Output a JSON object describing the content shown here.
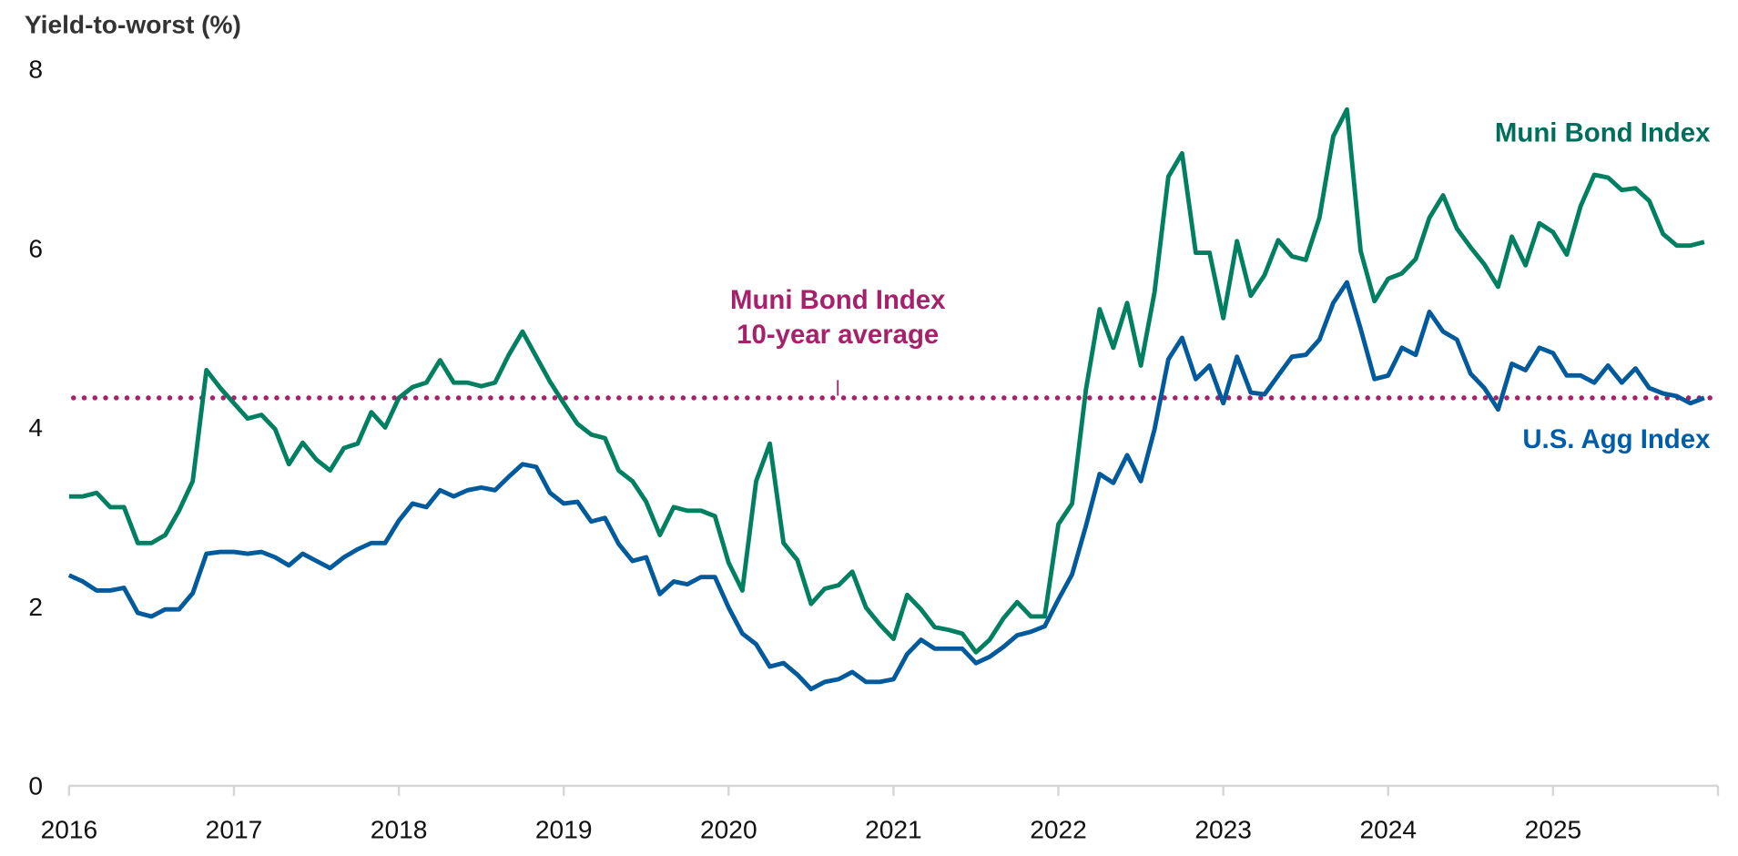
{
  "chart_data": {
    "type": "line",
    "ylabel": "Yield-to-worst (%)",
    "ylim": [
      0,
      8
    ],
    "yticks": [
      0,
      2,
      4,
      6,
      8
    ],
    "xticks": [
      "2016",
      "2017",
      "2018",
      "2019",
      "2020",
      "2021",
      "2022",
      "2023",
      "2024",
      "2025"
    ],
    "xrange": [
      "2016-01",
      "2025-12"
    ],
    "frequency": "monthly",
    "grid": false,
    "series": [
      {
        "name": "Muni Bond Index",
        "color": "#008060",
        "label_color": "#006e5a",
        "values": [
          3.23,
          3.23,
          3.27,
          3.11,
          3.11,
          2.71,
          2.71,
          2.8,
          3.07,
          3.4,
          4.64,
          4.44,
          4.27,
          4.1,
          4.14,
          3.98,
          3.59,
          3.83,
          3.64,
          3.52,
          3.77,
          3.82,
          4.17,
          4.0,
          4.33,
          4.45,
          4.5,
          4.75,
          4.5,
          4.5,
          4.46,
          4.5,
          4.81,
          5.07,
          4.79,
          4.51,
          4.27,
          4.04,
          3.92,
          3.88,
          3.52,
          3.4,
          3.17,
          2.8,
          3.11,
          3.07,
          3.07,
          3.01,
          2.49,
          2.18,
          3.4,
          3.82,
          2.71,
          2.52,
          2.03,
          2.2,
          2.24,
          2.39,
          1.99,
          1.8,
          1.64,
          2.13,
          1.97,
          1.77,
          1.74,
          1.7,
          1.49,
          1.63,
          1.87,
          2.05,
          1.89,
          1.89,
          2.92,
          3.15,
          4.42,
          5.32,
          4.89,
          5.39,
          4.69,
          5.51,
          6.8,
          7.06,
          5.95,
          5.95,
          5.22,
          6.08,
          5.47,
          5.7,
          6.09,
          5.91,
          5.87,
          6.34,
          7.25,
          7.55,
          5.97,
          5.41,
          5.66,
          5.72,
          5.88,
          6.34,
          6.59,
          6.22,
          6.01,
          5.82,
          5.57,
          6.13,
          5.81,
          6.28,
          6.18,
          5.93,
          6.47,
          6.82,
          6.79,
          6.65,
          6.67,
          6.53,
          6.16,
          6.03,
          6.03,
          6.07
        ]
      },
      {
        "name": "U.S. Agg Index",
        "color": "#005a9c",
        "label_color": "#005ea8",
        "values": [
          2.35,
          2.28,
          2.18,
          2.18,
          2.21,
          1.93,
          1.89,
          1.97,
          1.97,
          2.15,
          2.59,
          2.61,
          2.61,
          2.59,
          2.61,
          2.55,
          2.46,
          2.59,
          2.51,
          2.43,
          2.55,
          2.64,
          2.71,
          2.71,
          2.96,
          3.15,
          3.11,
          3.3,
          3.23,
          3.3,
          3.33,
          3.3,
          3.45,
          3.59,
          3.56,
          3.27,
          3.15,
          3.17,
          2.95,
          2.99,
          2.7,
          2.51,
          2.55,
          2.14,
          2.28,
          2.25,
          2.33,
          2.33,
          1.99,
          1.7,
          1.58,
          1.33,
          1.37,
          1.24,
          1.08,
          1.16,
          1.19,
          1.27,
          1.16,
          1.16,
          1.19,
          1.47,
          1.63,
          1.53,
          1.53,
          1.53,
          1.37,
          1.44,
          1.55,
          1.68,
          1.72,
          1.78,
          2.08,
          2.36,
          2.9,
          3.48,
          3.38,
          3.69,
          3.4,
          3.98,
          4.76,
          5.0,
          4.54,
          4.69,
          4.27,
          4.79,
          4.39,
          4.37,
          4.58,
          4.79,
          4.81,
          4.98,
          5.39,
          5.62,
          5.1,
          4.54,
          4.58,
          4.89,
          4.81,
          5.29,
          5.07,
          4.98,
          4.6,
          4.44,
          4.2,
          4.71,
          4.64,
          4.89,
          4.83,
          4.58,
          4.58,
          4.5,
          4.69,
          4.5,
          4.66,
          4.44,
          4.38,
          4.35,
          4.27,
          4.33
        ]
      }
    ],
    "reference_line": {
      "value": 4.33,
      "style": "dotted",
      "color": "#a6206a",
      "label_line1": "Muni Bond Index",
      "label_line2": "10-year average"
    }
  }
}
